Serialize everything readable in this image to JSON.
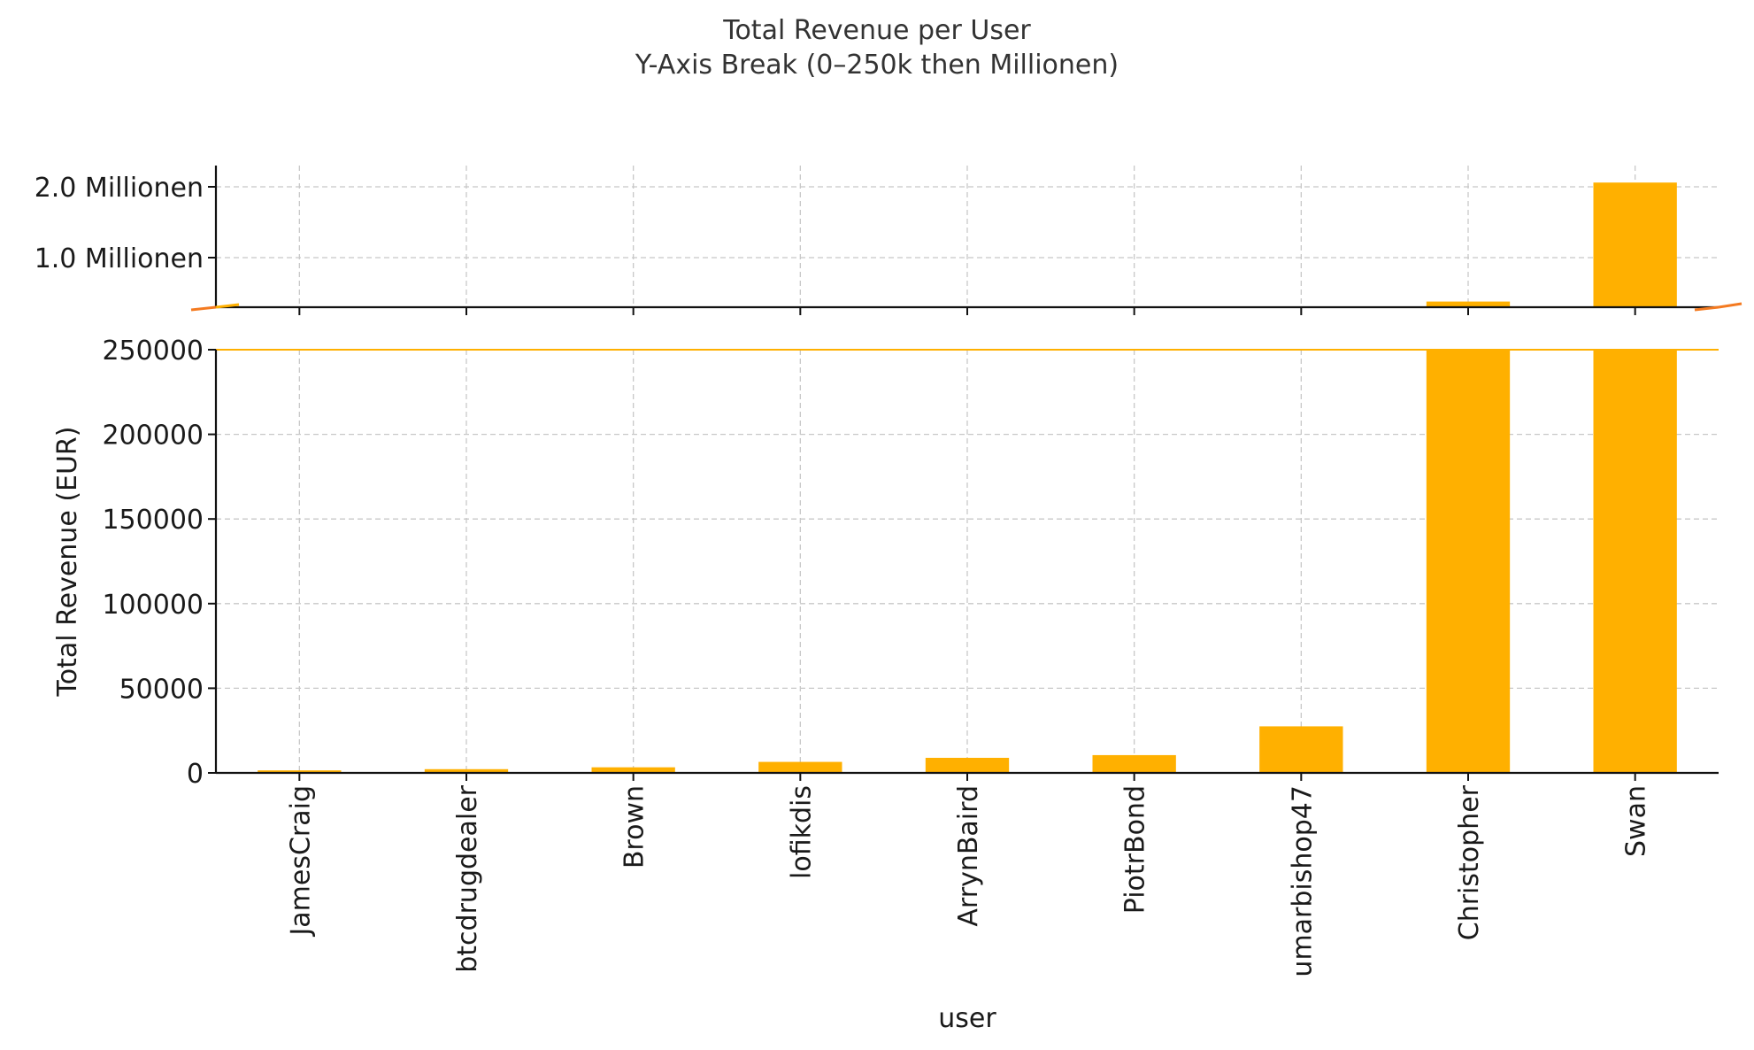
{
  "chart_data": {
    "type": "bar",
    "title": "Total Revenue per User",
    "subtitle": "Y-Axis Break (0–250k then Millionen)",
    "xlabel": "user",
    "ylabel": "Total Revenue (EUR)",
    "categories": [
      "JamesCraig",
      "btcdrugdealer",
      "Brown",
      "lofikdis",
      "ArrynBaird",
      "PiotrBond",
      "umarbishop47",
      "Christopher",
      "Swan"
    ],
    "values": [
      1500,
      2200,
      3300,
      6500,
      8900,
      10500,
      27500,
      380000,
      2060000
    ],
    "color": "#ffb000",
    "break_line_color": "#ffb000",
    "break_mark_color": "#f47a20",
    "grid": true,
    "axis_break": true,
    "lower_axis": {
      "ylim": [
        0,
        250000
      ],
      "ticks": [
        0,
        50000,
        100000,
        150000,
        200000,
        250000
      ],
      "tick_labels": [
        "0",
        "50000",
        "100000",
        "150000",
        "200000",
        "250000"
      ]
    },
    "upper_axis": {
      "ylim": [
        300000,
        2300000
      ],
      "ticks": [
        1000000,
        2000000
      ],
      "tick_labels": [
        "1.0 Millionen",
        "2.0 Millionen"
      ]
    }
  }
}
